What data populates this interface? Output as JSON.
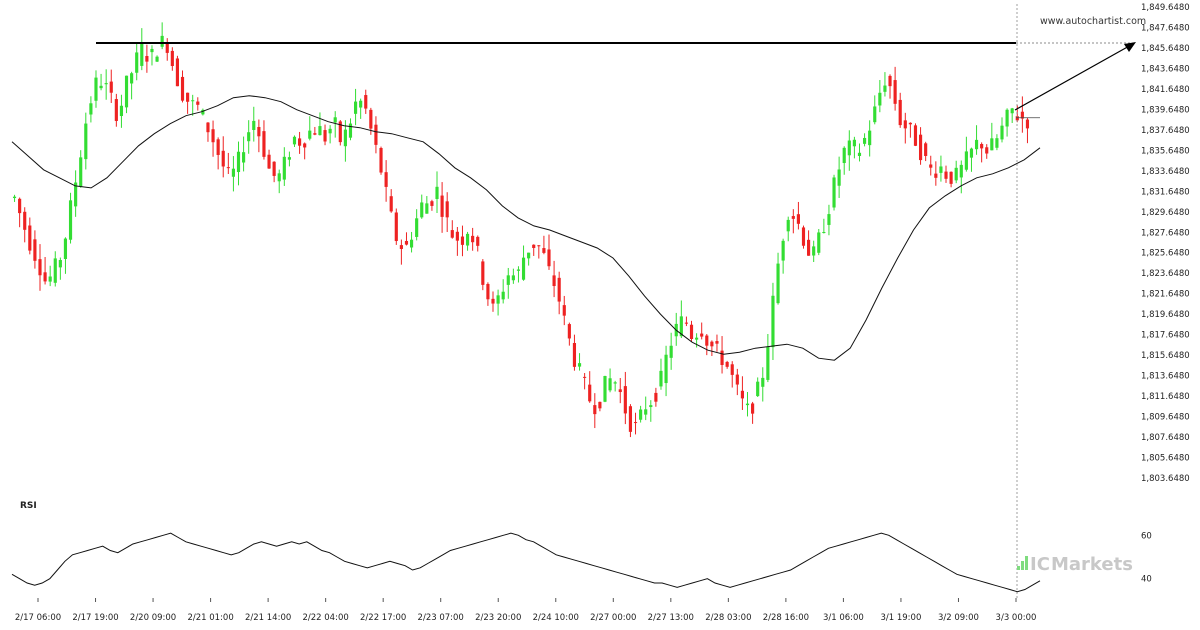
{
  "watermark": "www.autochartist.com",
  "brand": {
    "prefix": "IC",
    "suffix": "Markets",
    "color": "#c8c8c8",
    "accent": "#7fdc7f"
  },
  "colors": {
    "up": "#33dd33",
    "down": "#ee2222",
    "ma": "#111111",
    "rsi": "#111111",
    "level": "#000000",
    "arrow": "#000000"
  },
  "chart_data": [
    {
      "type": "candlestick",
      "title": "",
      "ylim": [
        1802.648,
        1849.648
      ],
      "y_ticks": [
        "1,849.6480",
        "1,847.6480",
        "1,845.6480",
        "1,843.6480",
        "1,841.6480",
        "1,839.6480",
        "1,837.6480",
        "1,835.6480",
        "1,833.6480",
        "1,831.6480",
        "1,829.6480",
        "1,827.6480",
        "1,825.6480",
        "1,823.6480",
        "1,821.6480",
        "1,819.6480",
        "1,817.6480",
        "1,815.6480",
        "1,813.6480",
        "1,811.6480",
        "1,809.6480",
        "1,807.6480",
        "1,805.6480",
        "1,803.6480"
      ],
      "x_ticks": [
        "2/17 06:00",
        "2/17 19:00",
        "2/20 09:00",
        "2/21 01:00",
        "2/21 14:00",
        "2/22 04:00",
        "2/22 17:00",
        "2/23 07:00",
        "2/23 20:00",
        "2/24 10:00",
        "2/27 00:00",
        "2/27 13:00",
        "2/28 03:00",
        "2/28 16:00",
        "3/1 06:00",
        "3/1 19:00",
        "3/2 09:00",
        "3/3 00:00"
      ],
      "close_path": [
        1830.6,
        1828.2,
        1826.0,
        1824.2,
        1822.0,
        1823.4,
        1825.2,
        1829.5,
        1833.8,
        1838.5,
        1841.8,
        1842.4,
        1840.6,
        1838.8,
        1841.8,
        1843.8,
        1845.6,
        1844.4,
        1845.8,
        1846.4,
        1843.4,
        1841.2,
        1840.0,
        1839.6,
        1838.0,
        1836.2,
        1834.0,
        1832.4,
        1834.0,
        1836.8,
        1838.4,
        1836.2,
        1833.2,
        1832.4,
        1834.2,
        1836.6,
        1836.2,
        1837.2,
        1837.6,
        1836.6,
        1838.2,
        1836.0,
        1838.0,
        1840.6,
        1839.4,
        1836.4,
        1833.2,
        1829.2,
        1826.2,
        1825.4,
        1827.6,
        1829.8,
        1830.2,
        1831.4,
        1828.6,
        1826.8,
        1826.4,
        1827.8,
        1825.2,
        1821.6,
        1819.4,
        1821.2,
        1823.2,
        1822.6,
        1825.2,
        1826.0,
        1825.6,
        1823.2,
        1821.4,
        1818.0,
        1815.0,
        1812.8,
        1810.6,
        1809.8,
        1811.8,
        1812.8,
        1811.0,
        1808.4,
        1807.6,
        1809.8,
        1810.6,
        1812.2,
        1815.6,
        1817.6,
        1818.6,
        1816.8,
        1817.8,
        1816.2,
        1815.2,
        1814.4,
        1812.6,
        1810.4,
        1809.2,
        1810.8,
        1813.6,
        1819.6,
        1825.6,
        1829.4,
        1828.6,
        1826.4,
        1824.4,
        1826.8,
        1829.4,
        1832.6,
        1835.2,
        1835.6,
        1835.4,
        1837.2,
        1839.6,
        1842.6,
        1841.4,
        1838.4,
        1837.4,
        1836.4,
        1834.6,
        1833.2,
        1833.8,
        1832.8,
        1832.6,
        1833.8,
        1835.2,
        1836.4,
        1835.2,
        1836.2,
        1837.8,
        1839.4,
        1838.6,
        1838.4
      ],
      "ma_path": [
        1836.2,
        1834.8,
        1833.4,
        1832.6,
        1831.8,
        1831.6,
        1832.6,
        1834.2,
        1835.8,
        1837.0,
        1838.0,
        1838.8,
        1839.2,
        1839.8,
        1840.6,
        1840.8,
        1840.6,
        1840.2,
        1839.4,
        1838.8,
        1838.2,
        1837.8,
        1837.6,
        1837.2,
        1837.0,
        1836.6,
        1836.2,
        1835.0,
        1833.6,
        1832.6,
        1831.4,
        1829.8,
        1828.6,
        1827.8,
        1827.4,
        1826.8,
        1826.2,
        1825.6,
        1824.6,
        1822.8,
        1820.8,
        1819.0,
        1817.4,
        1816.2,
        1815.4,
        1815.0,
        1815.2,
        1815.6,
        1815.8,
        1816.0,
        1815.6,
        1814.6,
        1814.4,
        1815.6,
        1818.4,
        1821.6,
        1824.6,
        1827.4,
        1829.6,
        1830.8,
        1831.8,
        1832.6,
        1833.0,
        1833.6,
        1834.4,
        1835.6
      ],
      "current_price": 1838.6
    },
    {
      "type": "line",
      "title": "RSI",
      "ylim": [
        32,
        68
      ],
      "y_ticks": [
        60,
        40
      ],
      "values": [
        42,
        40,
        38,
        37,
        38,
        40,
        44,
        48,
        51,
        52,
        53,
        54,
        55,
        53,
        52,
        54,
        56,
        57,
        58,
        59,
        60,
        61,
        59,
        57,
        56,
        55,
        54,
        53,
        52,
        51,
        52,
        54,
        56,
        57,
        56,
        55,
        56,
        57,
        56,
        57,
        55,
        53,
        52,
        50,
        48,
        47,
        46,
        45,
        46,
        47,
        48,
        47,
        46,
        44,
        45,
        47,
        49,
        51,
        53,
        54,
        55,
        56,
        57,
        58,
        59,
        60,
        61,
        60,
        58,
        57,
        55,
        53,
        51,
        50,
        49,
        48,
        47,
        46,
        45,
        44,
        43,
        42,
        41,
        40,
        39,
        38,
        38,
        37,
        36,
        37,
        38,
        39,
        40,
        38,
        37,
        36,
        37,
        38,
        39,
        40,
        41,
        42,
        43,
        44,
        46,
        48,
        50,
        52,
        54,
        55,
        56,
        57,
        58,
        59,
        60,
        61,
        60,
        58,
        56,
        54,
        52,
        50,
        48,
        46,
        44,
        42,
        41,
        40,
        39,
        38,
        37,
        36,
        35,
        34,
        35,
        37,
        39
      ]
    }
  ]
}
